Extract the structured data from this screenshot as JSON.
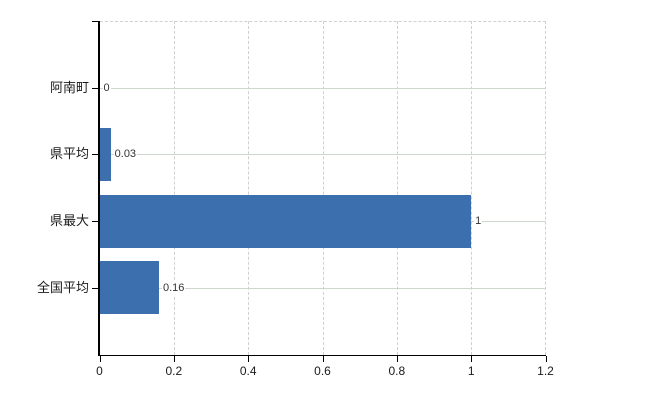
{
  "chart_data": {
    "type": "bar",
    "orientation": "horizontal",
    "categories": [
      "阿南町",
      "県平均",
      "県最大",
      "全国平均"
    ],
    "values": [
      0,
      0.03,
      1,
      0.16
    ],
    "data_labels": [
      "0",
      "0.03",
      "1",
      "0.16"
    ],
    "x_ticks": [
      0,
      0.2,
      0.4,
      0.6,
      0.8,
      1,
      1.2
    ],
    "x_tick_labels": [
      "0",
      "0.2",
      "0.4",
      "0.6",
      "0.8",
      "1",
      "1.2"
    ],
    "xlim": [
      0,
      1.2
    ],
    "grid": {
      "vertical": "dashed",
      "horizontal": "solid"
    },
    "legend": "none",
    "colors": {
      "bar": "#3c6fae",
      "axis": "#000000",
      "tick": "#000000",
      "vertical_gridline": "#d2ced2",
      "horizontal_gridline": "#ccd8cc",
      "plot_border": "#d2ced2",
      "category_label": "#1a1a1a",
      "x_tick_label": "#1a1a1a",
      "data_label": "#333333",
      "background": "#ffffff"
    }
  }
}
